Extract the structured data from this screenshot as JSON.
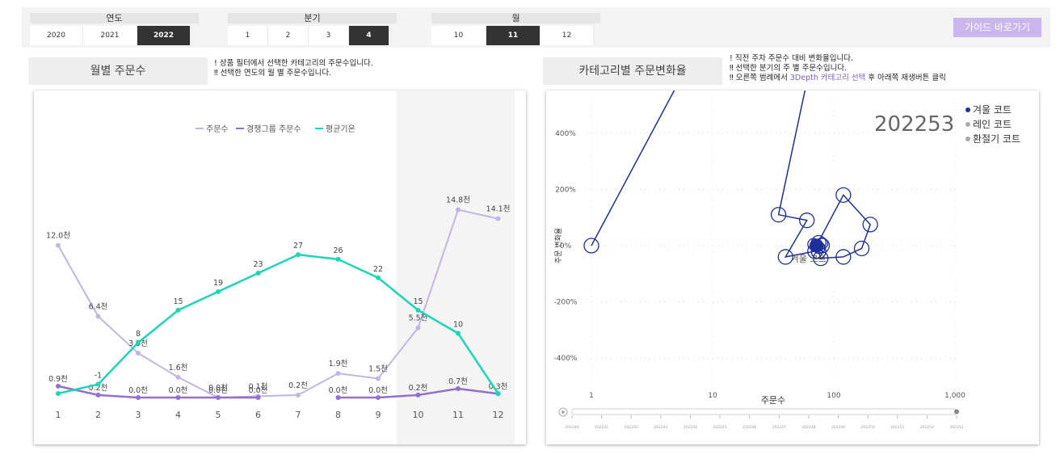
{
  "slicers": {
    "year": {
      "title": "연도",
      "options": [
        "2020",
        "2021",
        "2022"
      ],
      "selected": "2022"
    },
    "quarter": {
      "title": "분기",
      "options": [
        "1",
        "2",
        "3",
        "4"
      ],
      "selected": "4"
    },
    "month": {
      "title": "월",
      "options": [
        "10",
        "11",
        "12"
      ],
      "selected": "11"
    }
  },
  "guide_button": "가이드 바로가기",
  "left_panel": {
    "title": "월별 주문수",
    "notes": [
      "! 상품 필터에서 선택한 카테고리의 주문수입니다.",
      "‼ 선택한 연도의 월 별 주문수입니다."
    ]
  },
  "right_panel": {
    "title": "카테고리별 주문변화율",
    "notes": [
      "! 직전 주차 주문수 대비 변화율입니다.",
      "‼ 선택한 분기의 주 별 주문수입니다."
    ],
    "note3_prefix": "‼ 오른쪽 범례에서 ",
    "note3_highlight": "3Depth 카테고리 선택",
    "note3_suffix": " 후 아래쪽 재생버튼 클릭"
  },
  "colors": {
    "orders": "#c3b5e3",
    "competitor": "#9270cf",
    "temperature": "#1ed6b5",
    "scatter": "#1f2f9a",
    "highlight_band": "#f4f4f4"
  },
  "chart_data": [
    {
      "type": "line",
      "title": "",
      "categories": [
        "1",
        "2",
        "3",
        "4",
        "5",
        "6",
        "7",
        "8",
        "9",
        "10",
        "11",
        "12"
      ],
      "highlighted_categories": [
        "10",
        "11",
        "12"
      ],
      "legend_position": "top",
      "series": [
        {
          "name": "주문수",
          "values": [
            12.0,
            6.4,
            3.5,
            1.6,
            0.0,
            0.1,
            0.2,
            1.9,
            1.5,
            5.5,
            14.8,
            14.1
          ],
          "labels": [
            "12.0천",
            "6.4천",
            "3.5천",
            "1.6천",
            "0.0천",
            "0.1천",
            "0.2천",
            "1.9천",
            "1.5천",
            "5.5천",
            "14.8천",
            "14.1천"
          ]
        },
        {
          "name": "경쟁그룹 주문수",
          "values": [
            0.9,
            0.2,
            0.0,
            0.0,
            0.0,
            0.0,
            null,
            0.0,
            0.0,
            0.2,
            0.7,
            0.3
          ],
          "labels": [
            "0.9천",
            "0.2천",
            "0.0천",
            "0.0천",
            "0.0천",
            "0.0천",
            "",
            "0.0천",
            "0.0천",
            "0.2천",
            "0.7천",
            "0.3천"
          ]
        },
        {
          "name": "평균기온",
          "values": [
            -3,
            -1,
            8,
            15,
            19,
            23,
            27,
            26,
            22,
            15,
            10,
            -3
          ],
          "labels": [
            "",
            "-1",
            "8",
            "15",
            "19",
            "23",
            "27",
            "26",
            "22",
            "15",
            "10",
            ""
          ]
        }
      ]
    },
    {
      "type": "scatter",
      "title": "",
      "play_value": "202253",
      "xlabel": "주문수",
      "ylabel": "주문 변화율",
      "x_scale": "log",
      "x_ticks": [
        "1",
        "10",
        "100",
        "1,000"
      ],
      "y_ticks": [
        "400%",
        "200%",
        "0%",
        "-200%",
        "-400%"
      ],
      "ylim": [
        -450,
        450
      ],
      "legend": [
        "겨울 코트",
        "레인 코트",
        "환절기 코트"
      ],
      "legend_colors": [
        "#1f2f9a",
        "#a9a9a9",
        "#a9a9a9"
      ],
      "point_label": "겨울 코트",
      "timeline": [
        "202240",
        "202241",
        "202242",
        "202243",
        "202244",
        "202245",
        "202246",
        "202247",
        "202248",
        "202249",
        "202250",
        "202251",
        "202252",
        "202253"
      ],
      "trail": [
        {
          "x": 1,
          "y": 0
        },
        {
          "x": 300,
          "y": 2000
        },
        {
          "x": 35,
          "y": 110
        },
        {
          "x": 60,
          "y": 90
        },
        {
          "x": 40,
          "y": -40
        },
        {
          "x": 70,
          "y": -20
        },
        {
          "x": 75,
          "y": 10
        },
        {
          "x": 80,
          "y": 0
        },
        {
          "x": 75,
          "y": -20
        },
        {
          "x": 78,
          "y": -45
        },
        {
          "x": 120,
          "y": -40
        },
        {
          "x": 170,
          "y": -10
        },
        {
          "x": 200,
          "y": 75
        },
        {
          "x": 120,
          "y": 180
        },
        {
          "x": 72,
          "y": 0
        }
      ]
    }
  ]
}
